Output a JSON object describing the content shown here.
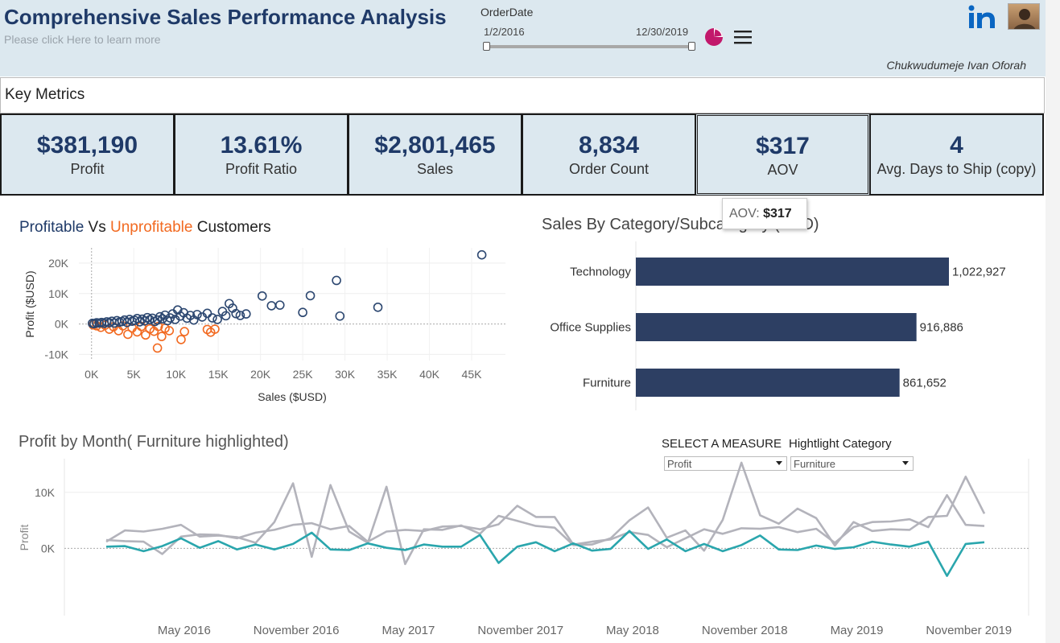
{
  "header": {
    "title": "Comprehensive Sales Performance Analysis",
    "subtitle": "Please click Here to learn more",
    "filter_label": "OrderDate",
    "date_start": "1/2/2016",
    "date_end": "12/30/2019",
    "author": "Chukwudumeje Ivan Oforah",
    "icons": [
      "pie-chart-icon",
      "menu-icon",
      "linkedin-icon",
      "avatar"
    ]
  },
  "key_metrics": {
    "title": "Key Metrics",
    "items": [
      {
        "value": "$381,190",
        "label": "Profit"
      },
      {
        "value": "13.61%",
        "label": "Profit Ratio"
      },
      {
        "value": "$2,801,465",
        "label": "Sales"
      },
      {
        "value": "8,834",
        "label": "Order Count"
      },
      {
        "value": "$317",
        "label": "AOV"
      },
      {
        "value": "4",
        "label": "Avg. Days to Ship (copy)"
      }
    ]
  },
  "tooltip": {
    "label": "AOV: ",
    "value": "$317"
  },
  "colors": {
    "brand": "#1f3a68",
    "profitable": "#2c4770",
    "unprofitable": "#f26a21",
    "bar": "#2d3f63",
    "highlight": "#2aa6ad",
    "other_lines": "#b3b3bb",
    "pie": "#c2186b"
  },
  "scatter": {
    "title_profitable": "Profitable",
    "title_vs": " Vs ",
    "title_unprofitable": "Unprofitable",
    "title_customers": " Customers"
  },
  "bars": {
    "title": "Sales By Category/Subcategory (USD)"
  },
  "line": {
    "title": "Profit by Month( Furniture highlighted)",
    "measure_label": "SELECT A MEASURE",
    "measure_value": "Profit",
    "category_label": "Hightlight Category",
    "category_value": "Furniture"
  },
  "chart_data": [
    {
      "type": "scatter",
      "title": "Profitable Vs Unprofitable Customers",
      "xlabel": "Sales ($USD)",
      "ylabel": "Profit ($USD)",
      "xlim": [
        -1500,
        49000
      ],
      "ylim": [
        -12000,
        25000
      ],
      "xticks": [
        0,
        5000,
        10000,
        15000,
        20000,
        25000,
        30000,
        35000,
        40000,
        45000
      ],
      "xtick_labels": [
        "0K",
        "5K",
        "10K",
        "15K",
        "20K",
        "25K",
        "30K",
        "35K",
        "40K",
        "45K"
      ],
      "yticks": [
        -10000,
        0,
        10000,
        20000
      ],
      "ytick_labels": [
        "-10K",
        "0K",
        "10K",
        "20K"
      ],
      "series": [
        {
          "name": "Profitable",
          "points": [
            [
              100,
              200
            ],
            [
              300,
              100
            ],
            [
              600,
              400
            ],
            [
              900,
              300
            ],
            [
              1200,
              500
            ],
            [
              1500,
              200
            ],
            [
              1800,
              700
            ],
            [
              2100,
              400
            ],
            [
              2400,
              900
            ],
            [
              2700,
              300
            ],
            [
              3000,
              1100
            ],
            [
              3300,
              600
            ],
            [
              3600,
              800
            ],
            [
              3900,
              1300
            ],
            [
              4200,
              500
            ],
            [
              4500,
              1500
            ],
            [
              4800,
              900
            ],
            [
              5100,
              1200
            ],
            [
              5400,
              1800
            ],
            [
              5700,
              700
            ],
            [
              6000,
              1600
            ],
            [
              6300,
              1000
            ],
            [
              6600,
              2100
            ],
            [
              6900,
              1400
            ],
            [
              7200,
              1900
            ],
            [
              7500,
              800
            ],
            [
              7800,
              1300
            ],
            [
              8100,
              2400
            ],
            [
              8400,
              1700
            ],
            [
              8700,
              2900
            ],
            [
              9000,
              1100
            ],
            [
              9300,
              2000
            ],
            [
              9600,
              3300
            ],
            [
              9900,
              1500
            ],
            [
              10200,
              4600
            ],
            [
              10500,
              2600
            ],
            [
              10900,
              3700
            ],
            [
              11300,
              1900
            ],
            [
              11700,
              2800
            ],
            [
              12100,
              1300
            ],
            [
              12500,
              3100
            ],
            [
              13100,
              2300
            ],
            [
              13700,
              3500
            ],
            [
              14300,
              2000
            ],
            [
              14900,
              1500
            ],
            [
              15500,
              4100
            ],
            [
              15900,
              2700
            ],
            [
              16300,
              6700
            ],
            [
              16700,
              5200
            ],
            [
              17100,
              3400
            ],
            [
              17600,
              2800
            ],
            [
              18300,
              3300
            ],
            [
              20200,
              9200
            ],
            [
              21300,
              6000
            ],
            [
              22300,
              6200
            ],
            [
              25000,
              3800
            ],
            [
              25900,
              9300
            ],
            [
              29000,
              14300
            ],
            [
              29400,
              2600
            ],
            [
              33900,
              5500
            ],
            [
              46200,
              22700
            ]
          ]
        },
        {
          "name": "Unprofitable",
          "points": [
            [
              200,
              -300
            ],
            [
              600,
              -600
            ],
            [
              1100,
              -1100
            ],
            [
              1600,
              -400
            ],
            [
              2100,
              -1700
            ],
            [
              2600,
              -900
            ],
            [
              3200,
              -2200
            ],
            [
              3700,
              -600
            ],
            [
              4300,
              -3400
            ],
            [
              4800,
              -1300
            ],
            [
              5400,
              -2600
            ],
            [
              5900,
              -800
            ],
            [
              6400,
              -3600
            ],
            [
              6900,
              -1600
            ],
            [
              7400,
              -2400
            ],
            [
              7900,
              -800
            ],
            [
              8300,
              -4100
            ],
            [
              8700,
              -1400
            ],
            [
              9200,
              -2200
            ],
            [
              10600,
              -5100
            ],
            [
              11000,
              -2500
            ],
            [
              13700,
              -1800
            ],
            [
              14100,
              -2700
            ],
            [
              14600,
              -1700
            ],
            [
              7800,
              -7900
            ]
          ]
        }
      ]
    },
    {
      "type": "bar",
      "orientation": "horizontal",
      "title": "Sales By Category/Subcategory (USD)",
      "categories": [
        "Technology",
        "Office Supplies",
        "Furniture"
      ],
      "values": [
        1022927,
        916886,
        861652
      ],
      "value_labels": [
        "1,022,927",
        "916,886",
        "861,652"
      ],
      "xlim": [
        0,
        1022927
      ]
    },
    {
      "type": "line",
      "title": "Profit by Month( Furniture highlighted)",
      "ylabel": "Profit",
      "ylim": [
        -12000,
        16000
      ],
      "yticks": [
        0,
        10000
      ],
      "ytick_labels": [
        "0K",
        "10K"
      ],
      "x_labels": [
        "May 2016",
        "November 2016",
        "May 2017",
        "November 2017",
        "May 2018",
        "November 2018",
        "May 2019",
        "November 2019"
      ],
      "x_label_month_index": [
        4,
        10,
        16,
        22,
        28,
        34,
        40,
        46
      ],
      "highlighted_series": "Furniture",
      "series": [
        {
          "name": "Technology",
          "values": [
            1200,
            3200,
            3000,
            3500,
            4200,
            2100,
            2300,
            2000,
            1000,
            4700,
            11600,
            -1500,
            11300,
            3000,
            1000,
            11000,
            -2800,
            3400,
            3300,
            4100,
            2600,
            5800,
            4900,
            4000,
            3700,
            600,
            700,
            1800,
            5000,
            7300,
            1900,
            3200,
            -400,
            5100,
            15300,
            5900,
            4400,
            7100,
            5400,
            500,
            4700,
            3100,
            3400,
            3300,
            5600,
            5800,
            12800,
            6200
          ]
        },
        {
          "name": "Office Supplies",
          "values": [
            1500,
            1300,
            1200,
            -1000,
            2100,
            2500,
            2400,
            1800,
            2800,
            3300,
            4200,
            4500,
            3400,
            4000,
            1200,
            3000,
            3300,
            3100,
            3900,
            4000,
            3400,
            4300,
            7600,
            5600,
            5600,
            700,
            1200,
            1600,
            2900,
            2400,
            200,
            1800,
            3400,
            2600,
            3600,
            3500,
            3800,
            2900,
            3500,
            1000,
            3800,
            4700,
            4800,
            5200,
            3800,
            9500,
            4200,
            4000
          ]
        },
        {
          "name": "Furniture",
          "values": [
            300,
            400,
            -500,
            400,
            1800,
            100,
            1300,
            -200,
            700,
            -200,
            800,
            2800,
            -200,
            -300,
            900,
            100,
            -300,
            700,
            300,
            300,
            2400,
            -2600,
            300,
            1100,
            -500,
            900,
            -400,
            -100,
            3100,
            -100,
            1600,
            -500,
            800,
            -500,
            600,
            2300,
            -200,
            -300,
            500,
            -100,
            200,
            1200,
            700,
            300,
            1200,
            -4900,
            800,
            1100
          ]
        }
      ]
    }
  ]
}
